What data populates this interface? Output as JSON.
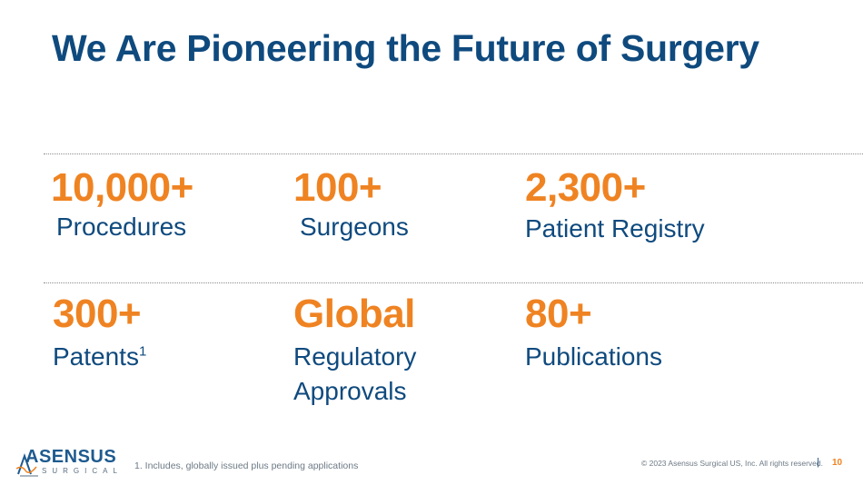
{
  "slide": {
    "title": "We Are Pioneering the Future of Surgery",
    "stats_row1": [
      {
        "value": "10,000+",
        "label": "Procedures"
      },
      {
        "value": "100+",
        "label": "Surgeons"
      },
      {
        "value": "2,300+",
        "label": "Patient Registry"
      }
    ],
    "stats_row2": [
      {
        "value": "300+",
        "label": "Patents",
        "label_sup": "1"
      },
      {
        "value": "Global",
        "label_line1": "Regulatory",
        "label_line2": "Approvals"
      },
      {
        "value": "80+",
        "label": "Publications"
      }
    ],
    "colors": {
      "title": "#0f4a7e",
      "accent": "#ef8322"
    }
  },
  "footer": {
    "logo_name": "ASENSUS",
    "logo_sub": "SURGICAL",
    "footnote": "1. Includes, globally issued plus pending applications",
    "copyright": "© 2023 Asensus Surgical US, Inc. All rights reserved.",
    "separator": "|",
    "page_number": "10"
  }
}
